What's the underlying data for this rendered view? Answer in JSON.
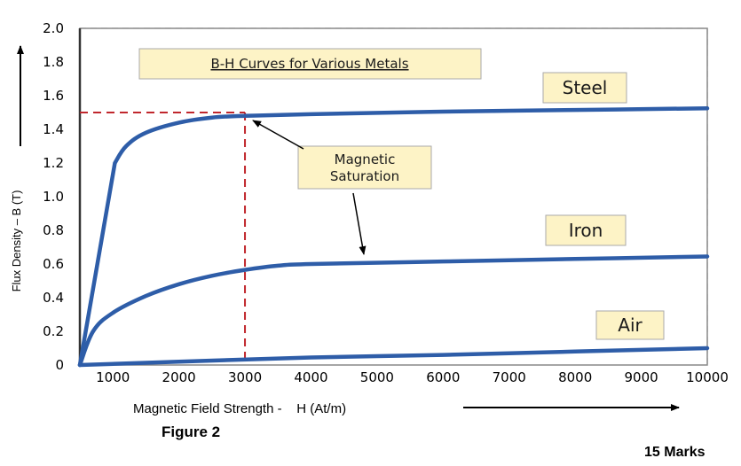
{
  "chart_data": {
    "type": "line",
    "title": "B-H Curves for Various Metals",
    "xlabel": "Magnetic Field Strength -    H (At/m)",
    "ylabel": "Flux Density – B (T)",
    "xlim": [
      500,
      10000
    ],
    "ylim": [
      0,
      2.0
    ],
    "x_ticks": [
      "1000",
      "2000",
      "3000",
      "4000",
      "5000",
      "6000",
      "7000",
      "8000",
      "9000",
      "10000"
    ],
    "y_ticks": [
      "0",
      "0.2",
      "0.4",
      "0.6",
      "0.8",
      "1.0",
      "1.2",
      "1.4",
      "1.6",
      "1.8",
      "2.0"
    ],
    "grid": true,
    "series": [
      {
        "name": "Steel",
        "x": [
          500,
          1030,
          1200,
          1500,
          2000,
          2500,
          3000,
          4000,
          6000,
          8000,
          10000
        ],
        "y": [
          0,
          1.2,
          1.3,
          1.38,
          1.44,
          1.47,
          1.48,
          1.49,
          1.505,
          1.515,
          1.525
        ]
      },
      {
        "name": "Iron",
        "x": [
          500,
          700,
          1000,
          1500,
          2000,
          2500,
          3000,
          3500,
          4000,
          6000,
          8000,
          10000
        ],
        "y": [
          0,
          0.2,
          0.31,
          0.41,
          0.48,
          0.53,
          0.565,
          0.59,
          0.6,
          0.615,
          0.63,
          0.645
        ]
      },
      {
        "name": "Air",
        "x": [
          500,
          2000,
          4000,
          6000,
          8000,
          10000
        ],
        "y": [
          0,
          0.02,
          0.045,
          0.06,
          0.08,
          0.1
        ]
      }
    ],
    "annotations": {
      "saturation_label_line1": "Magnetic",
      "saturation_label_line2": "Saturation",
      "saturation_point": {
        "x": 3000,
        "y": 1.5
      }
    },
    "colors": {
      "curve": "#2e5da8",
      "guide": "#c0272d",
      "label_bg": "#fdf3c6",
      "grid": "#9a9a9a",
      "plot_bg": "#ffffff"
    }
  },
  "figure_caption": "Figure 2",
  "marks": "15 Marks"
}
